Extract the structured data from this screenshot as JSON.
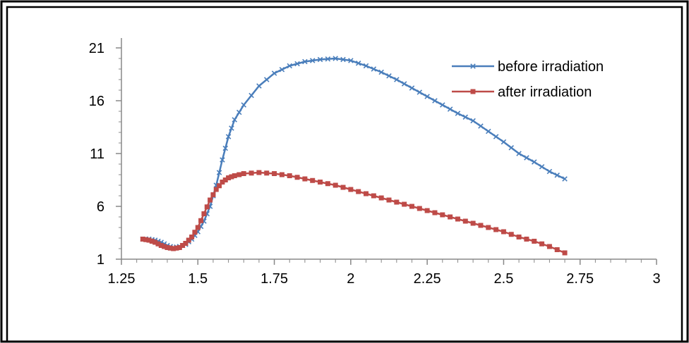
{
  "chart_data": {
    "type": "line",
    "title": "",
    "xlabel": "",
    "ylabel": "",
    "xlim": [
      1.25,
      3
    ],
    "ylim": [
      1,
      21
    ],
    "x_ticks": [
      1.25,
      1.5,
      1.75,
      2,
      2.25,
      2.5,
      2.75,
      3
    ],
    "x_tick_labels": [
      "1.25",
      "1.5",
      "1.75",
      "2",
      "2.25",
      "2.5",
      "2.75",
      "3"
    ],
    "y_ticks": [
      1,
      6,
      11,
      16,
      21
    ],
    "y_tick_labels": [
      "1",
      "6",
      "11",
      "16",
      "21"
    ],
    "grid": false,
    "legend_position": "top-right",
    "series": [
      {
        "name": "before irradiation",
        "color": "#4a7ebb",
        "marker": "x",
        "x": [
          1.32,
          1.34,
          1.36,
          1.38,
          1.4,
          1.42,
          1.44,
          1.46,
          1.48,
          1.5,
          1.52,
          1.54,
          1.56,
          1.58,
          1.6,
          1.62,
          1.65,
          1.7,
          1.75,
          1.8,
          1.85,
          1.9,
          1.95,
          2.0,
          2.05,
          2.1,
          2.15,
          2.2,
          2.25,
          2.3,
          2.35,
          2.4,
          2.45,
          2.5,
          2.55,
          2.6,
          2.65,
          2.7
        ],
        "y": [
          2.9,
          2.9,
          2.8,
          2.6,
          2.3,
          2.1,
          2.2,
          2.4,
          2.9,
          3.6,
          4.6,
          6.0,
          8.0,
          10.4,
          12.6,
          14.2,
          15.6,
          17.4,
          18.6,
          19.3,
          19.7,
          19.9,
          20.0,
          19.8,
          19.3,
          18.7,
          18.0,
          17.2,
          16.4,
          15.6,
          14.8,
          14.1,
          13.1,
          12.1,
          11.0,
          10.2,
          9.3,
          8.6
        ]
      },
      {
        "name": "after irradiation",
        "color": "#be4b48",
        "marker": "square",
        "x": [
          1.32,
          1.34,
          1.36,
          1.38,
          1.4,
          1.42,
          1.44,
          1.46,
          1.48,
          1.5,
          1.52,
          1.54,
          1.56,
          1.58,
          1.6,
          1.62,
          1.65,
          1.7,
          1.75,
          1.8,
          1.85,
          1.9,
          1.95,
          2.0,
          2.05,
          2.1,
          2.15,
          2.2,
          2.25,
          2.3,
          2.35,
          2.4,
          2.45,
          2.5,
          2.55,
          2.6,
          2.65,
          2.7
        ],
        "y": [
          2.9,
          2.8,
          2.6,
          2.3,
          2.1,
          2.0,
          2.1,
          2.5,
          3.1,
          4.0,
          5.3,
          6.6,
          7.6,
          8.3,
          8.7,
          8.9,
          9.1,
          9.2,
          9.1,
          8.9,
          8.6,
          8.3,
          8.0,
          7.6,
          7.2,
          6.8,
          6.4,
          6.0,
          5.6,
          5.2,
          4.8,
          4.4,
          4.0,
          3.6,
          3.1,
          2.7,
          2.2,
          1.6
        ]
      }
    ]
  }
}
